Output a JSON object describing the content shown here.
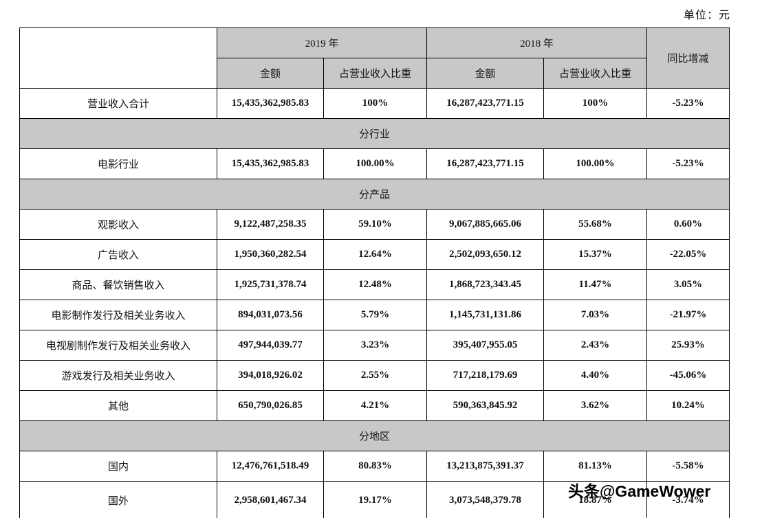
{
  "unit_label": "单位：元",
  "watermark": "头条@GameWower",
  "table": {
    "headers": {
      "y2019": "2019 年",
      "y2018": "2018 年",
      "yoy": "同比增减",
      "amount": "金额",
      "ratio": "占营业收入比重"
    },
    "rows": [
      {
        "type": "data",
        "label": "营业收入合计",
        "a2019": "15,435,362,985.83",
        "r2019": "100%",
        "a2018": "16,287,423,771.15",
        "r2018": "100%",
        "yoy": "-5.23%"
      },
      {
        "type": "section",
        "label": "分行业"
      },
      {
        "type": "data",
        "label": "电影行业",
        "a2019": "15,435,362,985.83",
        "r2019": "100.00%",
        "a2018": "16,287,423,771.15",
        "r2018": "100.00%",
        "yoy": "-5.23%"
      },
      {
        "type": "section",
        "label": "分产品"
      },
      {
        "type": "data",
        "label": "观影收入",
        "a2019": "9,122,487,258.35",
        "r2019": "59.10%",
        "a2018": "9,067,885,665.06",
        "r2018": "55.68%",
        "yoy": "0.60%"
      },
      {
        "type": "data",
        "label": "广告收入",
        "a2019": "1,950,360,282.54",
        "r2019": "12.64%",
        "a2018": "2,502,093,650.12",
        "r2018": "15.37%",
        "yoy": "-22.05%"
      },
      {
        "type": "data",
        "label": "商品、餐饮销售收入",
        "a2019": "1,925,731,378.74",
        "r2019": "12.48%",
        "a2018": "1,868,723,343.45",
        "r2018": "11.47%",
        "yoy": "3.05%"
      },
      {
        "type": "data",
        "label": "电影制作发行及相关业务收入",
        "a2019": "894,031,073.56",
        "r2019": "5.79%",
        "a2018": "1,145,731,131.86",
        "r2018": "7.03%",
        "yoy": "-21.97%"
      },
      {
        "type": "data",
        "label": "电视剧制作发行及相关业务收入",
        "a2019": "497,944,039.77",
        "r2019": "3.23%",
        "a2018": "395,407,955.05",
        "r2018": "2.43%",
        "yoy": "25.93%"
      },
      {
        "type": "data",
        "label": "游戏发行及相关业务收入",
        "a2019": "394,018,926.02",
        "r2019": "2.55%",
        "a2018": "717,218,179.69",
        "r2018": "4.40%",
        "yoy": "-45.06%"
      },
      {
        "type": "data",
        "label": "其他",
        "a2019": "650,790,026.85",
        "r2019": "4.21%",
        "a2018": "590,363,845.92",
        "r2018": "3.62%",
        "yoy": "10.24%"
      },
      {
        "type": "section",
        "label": "分地区"
      },
      {
        "type": "data",
        "label": "国内",
        "a2019": "12,476,761,518.49",
        "r2019": "80.83%",
        "a2018": "13,213,875,391.37",
        "r2018": "81.13%",
        "yoy": "-5.58%"
      },
      {
        "type": "data",
        "label": "国外",
        "a2019": "2,958,601,467.34",
        "r2019": "19.17%",
        "a2018": "3,073,548,379.78",
        "r2018": "18.87%",
        "yoy": "-3.74%"
      }
    ]
  }
}
